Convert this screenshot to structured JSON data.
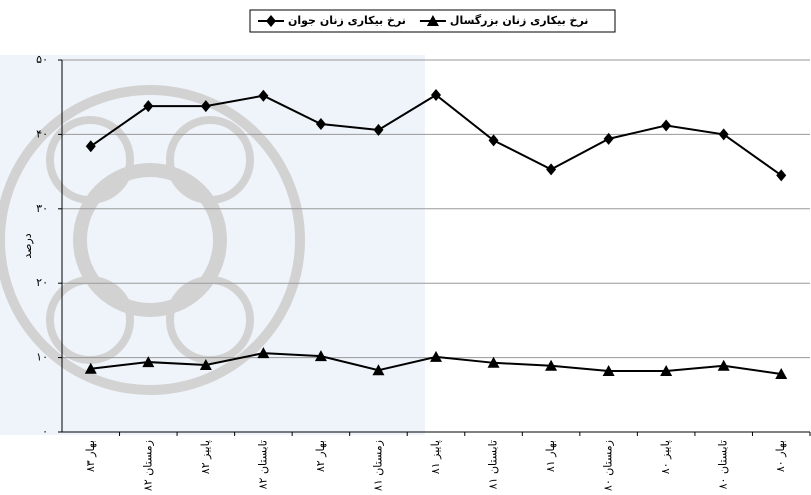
{
  "chart_data": {
    "type": "line",
    "legend_position": "top",
    "y_label": "درصد",
    "categories": [
      "بهار ۸۳",
      "زمستان ۸۲",
      "پاییز ۸۲",
      "تابستان ۸۲",
      "بهار ۸۲",
      "زمستان ۸۱",
      "پاییز ۸۱",
      "تابستان ۸۱",
      "بهار ۸۱",
      "زمستان ۸۰",
      "پاییز ۸۰",
      "تابستان ۸۰",
      "بهار ۸۰"
    ],
    "series": [
      {
        "name": "نرخ بیکاری زنان جوان",
        "color": "#000000",
        "marker": "diamond",
        "values": [
          38.4,
          43.8,
          43.8,
          45.2,
          41.4,
          40.6,
          45.3,
          39.2,
          35.3,
          39.4,
          41.2,
          40.0,
          34.5
        ]
      },
      {
        "name": "نرخ بیکاری زنان بزرگسال",
        "color": "#000000",
        "marker": "triangle",
        "values": [
          8.5,
          9.4,
          9.0,
          10.6,
          10.2,
          8.3,
          10.1,
          9.3,
          8.9,
          8.2,
          8.2,
          8.9,
          7.8
        ]
      }
    ],
    "ylim": [
      0,
      50
    ],
    "yticks": [
      {
        "value": 0,
        "label": "۰"
      },
      {
        "value": 10,
        "label": "۱۰"
      },
      {
        "value": 20,
        "label": "۲۰"
      },
      {
        "value": 30,
        "label": "۳۰"
      },
      {
        "value": 40,
        "label": "۴۰"
      },
      {
        "value": 50,
        "label": "۵۰"
      }
    ],
    "grid": true
  }
}
